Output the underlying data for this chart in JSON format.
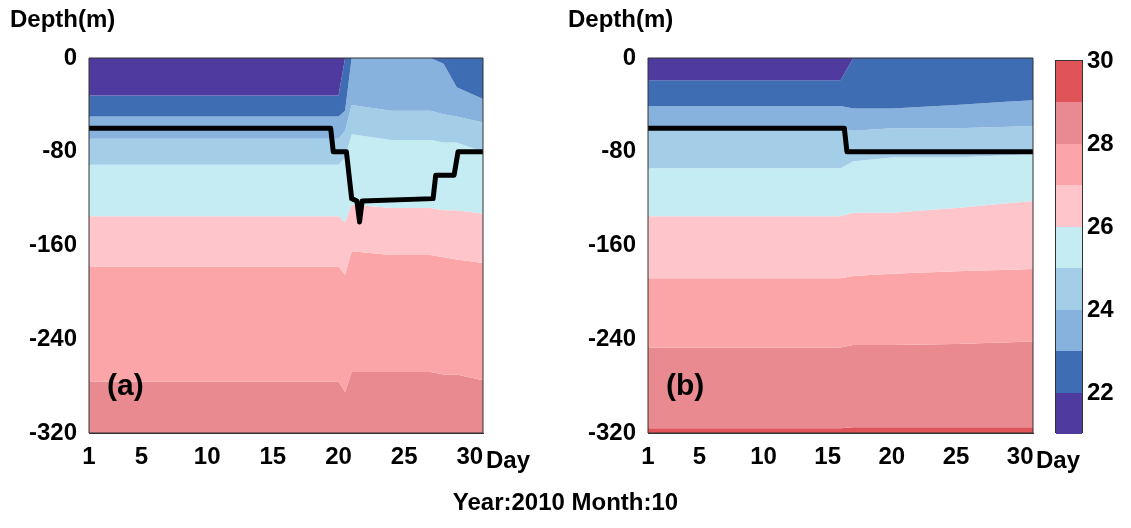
{
  "chart_data": [
    {
      "type": "area",
      "stacked": true,
      "ylabel": "Depth(m)",
      "xlabel": "Day",
      "annotations": [
        "(a)",
        "Year:2010  Month:10"
      ],
      "x": [
        1,
        10,
        19,
        20,
        20.5,
        21,
        24,
        27,
        28,
        29,
        31
      ],
      "xlim": [
        1,
        31
      ],
      "xticks": [
        1,
        5,
        10,
        15,
        20,
        25,
        30
      ],
      "ylim": [
        -320,
        0
      ],
      "yticks": [
        -320,
        -240,
        -160,
        -80,
        0
      ],
      "series": [
        {
          "color": "#4f3b9f",
          "values": [
            -32,
            -32,
            -32,
            -32,
            0,
            0,
            0,
            0,
            0,
            0,
            0
          ]
        },
        {
          "color": "#3f6db3",
          "values": [
            -18,
            -18,
            -18,
            -18,
            -45,
            0,
            0,
            0,
            -5,
            -25,
            -35
          ]
        },
        {
          "color": "#86b2dd",
          "values": [
            -19,
            -19,
            -19,
            -19,
            -17,
            -40,
            -45,
            -45,
            -43,
            -25,
            -20
          ]
        },
        {
          "color": "#a4cde8",
          "values": [
            -22,
            -22,
            -22,
            -22,
            -23,
            -25,
            -25,
            -25,
            -24,
            -22,
            -25
          ]
        },
        {
          "color": "#c5ebf3",
          "values": [
            -44,
            -44,
            -44,
            -44,
            -55,
            -60,
            -58,
            -58,
            -58,
            -58,
            -53
          ]
        },
        {
          "color": "#fec6cb",
          "values": [
            -43,
            -43,
            -43,
            -43,
            -45,
            -40,
            -40,
            -40,
            -40,
            -42,
            -42
          ]
        },
        {
          "color": "#fba5a9",
          "values": [
            -98,
            -98,
            -98,
            -98,
            -100,
            -103,
            -100,
            -100,
            -100,
            -98,
            -100
          ]
        },
        {
          "color": "#e88a90",
          "values": [
            -44,
            -44,
            -44,
            -44,
            -35,
            -52,
            -52,
            -52,
            -50,
            -50,
            -45
          ]
        },
        {
          "type": "line",
          "color": "#000000",
          "x": [
            1,
            19.4,
            19.6,
            20.6,
            21,
            21.4,
            21.6,
            21.8,
            27.2,
            27.4,
            28.8,
            29.1,
            31
          ],
          "values": [
            -60,
            -60,
            -80,
            -80,
            -120,
            -122,
            -140,
            -122,
            -120,
            -100,
            -100,
            -80,
            -80
          ]
        }
      ]
    },
    {
      "type": "area",
      "stacked": true,
      "ylabel": "Depth(m)",
      "xlabel": "Day",
      "annotations": [
        "(b)"
      ],
      "x": [
        1,
        10,
        16,
        17,
        20,
        25,
        31
      ],
      "xlim": [
        1,
        31
      ],
      "xticks": [
        1,
        5,
        10,
        15,
        20,
        25,
        30
      ],
      "ylim": [
        -320,
        0
      ],
      "yticks": [
        -320,
        -240,
        -160,
        -80,
        0
      ],
      "clim": [
        21,
        30
      ],
      "cticks": [
        22,
        24,
        26,
        28,
        30
      ],
      "series": [
        {
          "color": "#4f3b9f",
          "values": [
            -19,
            -19,
            -19,
            0,
            0,
            0,
            0
          ]
        },
        {
          "color": "#3f6db3",
          "values": [
            -22,
            -22,
            -22,
            -43,
            -43,
            -40,
            -36
          ]
        },
        {
          "color": "#86b2dd",
          "values": [
            -19,
            -19,
            -19,
            -19,
            -17,
            -20,
            -22
          ]
        },
        {
          "color": "#a4cde8",
          "values": [
            -34,
            -34,
            -34,
            -26,
            -25,
            -25,
            -24
          ]
        },
        {
          "color": "#c5ebf3",
          "values": [
            -41,
            -41,
            -41,
            -44,
            -47,
            -43,
            -40
          ]
        },
        {
          "color": "#fec6cb",
          "values": [
            -53,
            -53,
            -53,
            -54,
            -52,
            -54,
            -58
          ]
        },
        {
          "color": "#fba5a9",
          "values": [
            -59,
            -59,
            -59,
            -59,
            -61,
            -62,
            -62
          ]
        },
        {
          "color": "#e88a90",
          "values": [
            -69,
            -69,
            -69,
            -70,
            -70,
            -71,
            -73
          ]
        },
        {
          "color": "#e05358",
          "values": [
            -4,
            -4,
            -4,
            -5,
            -5,
            -5,
            -5
          ]
        },
        {
          "type": "line",
          "color": "#000000",
          "x": [
            1,
            16.3,
            16.5,
            31
          ],
          "values": [
            -60,
            -60,
            -80,
            -80
          ]
        }
      ]
    }
  ]
}
